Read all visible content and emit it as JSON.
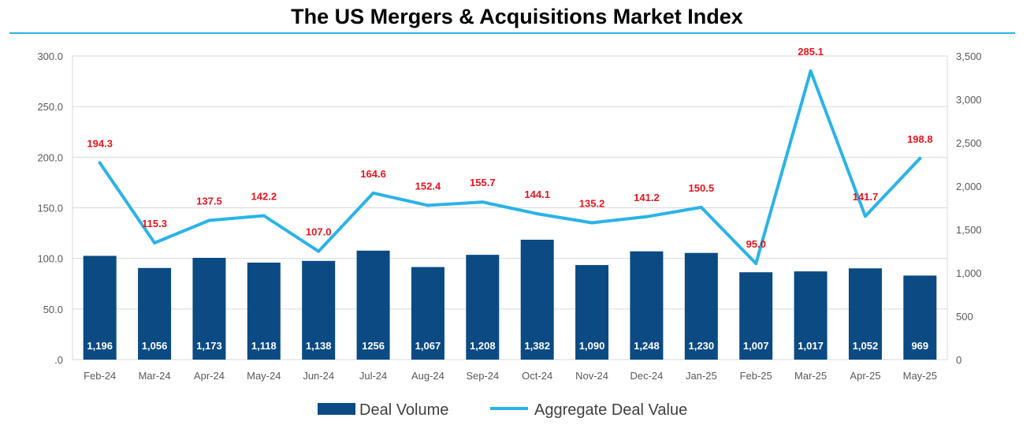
{
  "chart_data": {
    "type": "bar",
    "title": "The US Mergers & Acquisitions Market Index",
    "categories": [
      "Feb-24",
      "Mar-24",
      "Apr-24",
      "May-24",
      "Jun-24",
      "Jul-24",
      "Aug-24",
      "Sep-24",
      "Oct-24",
      "Nov-24",
      "Dec-24",
      "Jan-25",
      "Feb-25",
      "Mar-25",
      "Apr-25",
      "May-25"
    ],
    "series": [
      {
        "name": "Deal Volume",
        "type": "bar",
        "axis": "right",
        "color": "#0b4a83",
        "values": [
          1196,
          1056,
          1173,
          1118,
          1138,
          1256,
          1067,
          1208,
          1382,
          1090,
          1248,
          1230,
          1007,
          1017,
          1052,
          969
        ],
        "labels": [
          "1,196",
          "1,056",
          "1,173",
          "1,118",
          "1,138",
          "1256",
          "1,067",
          "1,208",
          "1,382",
          "1,090",
          "1,248",
          "1,230",
          "1,007",
          "1,017",
          "1,052",
          "969"
        ]
      },
      {
        "name": "Aggregate Deal Value",
        "type": "line",
        "axis": "left",
        "color": "#2bb3e6",
        "values": [
          194.3,
          115.3,
          137.5,
          142.2,
          107.0,
          164.6,
          152.4,
          155.7,
          144.1,
          135.2,
          141.2,
          150.5,
          95.0,
          285.1,
          141.7,
          198.8
        ],
        "labels": [
          "194.3",
          "115.3",
          "137.5",
          "142.2",
          "107.0",
          "164.6",
          "152.4",
          "155.7",
          "144.1",
          "135.2",
          "141.2",
          "150.5",
          "95.0",
          "285.1",
          "141.7",
          "198.8"
        ]
      }
    ],
    "y_left": {
      "ylim": [
        0,
        300
      ],
      "ticks": [
        0,
        50,
        100,
        150,
        200,
        250,
        300
      ],
      "tick_labels": [
        ".0",
        "50.0",
        "100.0",
        "150.0",
        "200.0",
        "250.0",
        "300.0"
      ]
    },
    "y_right": {
      "ylim": [
        0,
        3500
      ],
      "ticks": [
        0,
        500,
        1000,
        1500,
        2000,
        2500,
        3000,
        3500
      ],
      "tick_labels": [
        "0",
        "500",
        "1,000",
        "1,500",
        "2,000",
        "2,500",
        "3,000",
        "3,500"
      ]
    },
    "grid": true,
    "legend_position": "bottom-center",
    "colors": {
      "bar": "#0b4a83",
      "line": "#2bb3e6",
      "line_label": "#e8141e",
      "gridline": "#d9d9d9",
      "title_rule": "#2bb3e6"
    }
  }
}
